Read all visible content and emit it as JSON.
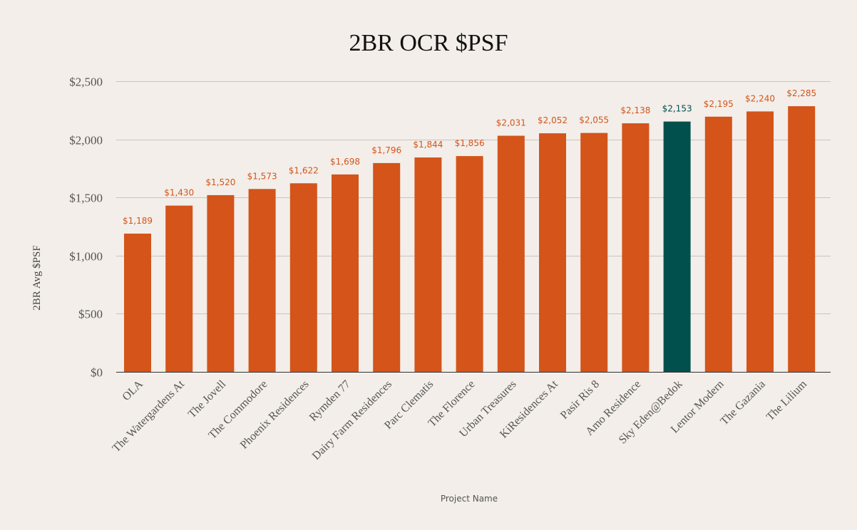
{
  "chart_data": {
    "type": "bar",
    "title": "2BR OCR $PSF",
    "xlabel": "Project Name",
    "ylabel": "2BR Avg $PSF",
    "ylim": [
      0,
      2500
    ],
    "yticks": [
      0,
      500,
      1000,
      1500,
      2000,
      2500
    ],
    "ytick_labels": [
      "$0",
      "$500",
      "$1,000",
      "$1,500",
      "$2,000",
      "$2,500"
    ],
    "grid": true,
    "categories": [
      "OLA",
      "The Watergardens At",
      "The Jovell",
      "The Commodore",
      "Phoenix Residences",
      "Rymden 77",
      "Dairy Farm Residences",
      "Parc Clematis",
      "The Florence",
      "Urban Treasures",
      "KiResidences At",
      "Pasir Ris 8",
      "Amo Residence",
      "Sky Eden@Bedok",
      "Lentor Modern",
      "The Gazania",
      "The Lilium"
    ],
    "values": [
      1189,
      1430,
      1520,
      1573,
      1622,
      1698,
      1796,
      1844,
      1856,
      2031,
      2052,
      2055,
      2138,
      2153,
      2195,
      2240,
      2285
    ],
    "data_labels": [
      "$1,189",
      "$1,430",
      "$1,520",
      "$1,573",
      "$1,622",
      "$1,698",
      "$1,796",
      "$1,844",
      "$1,856",
      "$2,031",
      "$2,052",
      "$2,055",
      "$2,138",
      "$2,153",
      "$2,195",
      "$2,240",
      "$2,285"
    ],
    "colors": {
      "default": "#d4541a",
      "highlight": "#01504e"
    },
    "highlight_category": "Sky Eden@Bedok"
  }
}
